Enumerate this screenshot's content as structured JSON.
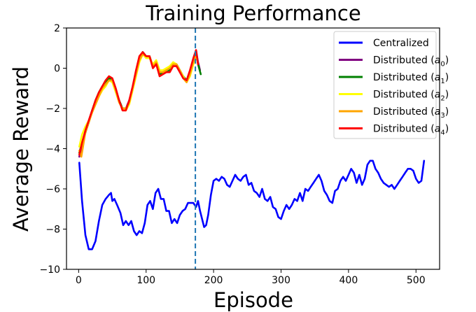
{
  "chart_data": {
    "type": "line",
    "title": "Training Performance",
    "xlabel": "Episode",
    "ylabel": "Average Reward",
    "xlim": [
      -18,
      535
    ],
    "ylim": [
      -10,
      2
    ],
    "x_ticks": [
      0,
      100,
      200,
      300,
      400,
      500
    ],
    "y_ticks": [
      -10,
      -8,
      -6,
      -4,
      -2,
      0,
      2
    ],
    "x_tick_labels": [
      "0",
      "100",
      "200",
      "300",
      "400",
      "500"
    ],
    "y_tick_labels": [
      "−10",
      "−8",
      "−6",
      "−4",
      "−2",
      "0",
      "2"
    ],
    "grid": false,
    "legend_position": "top-right",
    "vline": {
      "x": 173,
      "style": "dashed",
      "color": "#1f77b4"
    },
    "series": [
      {
        "name": "Centralized",
        "sub": "",
        "color": "#0000ff",
        "points": [
          [
            1,
            -4.7
          ],
          [
            5,
            -6.6
          ],
          [
            10,
            -8.3
          ],
          [
            15,
            -9.0
          ],
          [
            20,
            -9.0
          ],
          [
            25,
            -8.6
          ],
          [
            30,
            -7.6
          ],
          [
            35,
            -6.8
          ],
          [
            40,
            -6.5
          ],
          [
            45,
            -6.3
          ],
          [
            48,
            -6.2
          ],
          [
            50,
            -6.6
          ],
          [
            53,
            -6.5
          ],
          [
            57,
            -6.8
          ],
          [
            62,
            -7.2
          ],
          [
            66,
            -7.8
          ],
          [
            70,
            -7.6
          ],
          [
            74,
            -7.8
          ],
          [
            78,
            -7.6
          ],
          [
            82,
            -8.1
          ],
          [
            86,
            -8.3
          ],
          [
            90,
            -8.1
          ],
          [
            94,
            -8.2
          ],
          [
            98,
            -7.7
          ],
          [
            102,
            -6.8
          ],
          [
            106,
            -6.6
          ],
          [
            110,
            -7.0
          ],
          [
            114,
            -6.2
          ],
          [
            118,
            -6.0
          ],
          [
            122,
            -6.5
          ],
          [
            126,
            -6.5
          ],
          [
            130,
            -7.1
          ],
          [
            134,
            -7.1
          ],
          [
            138,
            -7.7
          ],
          [
            142,
            -7.5
          ],
          [
            146,
            -7.7
          ],
          [
            150,
            -7.3
          ],
          [
            154,
            -7.1
          ],
          [
            158,
            -7.0
          ],
          [
            162,
            -6.7
          ],
          [
            166,
            -6.7
          ],
          [
            170,
            -6.7
          ],
          [
            174,
            -6.9
          ],
          [
            177,
            -6.6
          ],
          [
            180,
            -7.1
          ],
          [
            183,
            -7.5
          ],
          [
            186,
            -7.9
          ],
          [
            189,
            -7.8
          ],
          [
            192,
            -7.3
          ],
          [
            196,
            -6.3
          ],
          [
            200,
            -5.6
          ],
          [
            204,
            -5.5
          ],
          [
            208,
            -5.6
          ],
          [
            212,
            -5.4
          ],
          [
            216,
            -5.5
          ],
          [
            220,
            -5.8
          ],
          [
            224,
            -5.9
          ],
          [
            228,
            -5.6
          ],
          [
            232,
            -5.3
          ],
          [
            236,
            -5.5
          ],
          [
            240,
            -5.6
          ],
          [
            244,
            -5.4
          ],
          [
            248,
            -5.3
          ],
          [
            252,
            -5.8
          ],
          [
            256,
            -5.7
          ],
          [
            260,
            -6.1
          ],
          [
            264,
            -6.2
          ],
          [
            268,
            -6.4
          ],
          [
            272,
            -6.0
          ],
          [
            276,
            -6.5
          ],
          [
            280,
            -6.6
          ],
          [
            284,
            -6.4
          ],
          [
            288,
            -6.9
          ],
          [
            292,
            -7.0
          ],
          [
            296,
            -7.4
          ],
          [
            300,
            -7.5
          ],
          [
            304,
            -7.1
          ],
          [
            308,
            -6.8
          ],
          [
            312,
            -7.0
          ],
          [
            316,
            -6.8
          ],
          [
            320,
            -6.5
          ],
          [
            324,
            -6.6
          ],
          [
            328,
            -6.2
          ],
          [
            332,
            -6.6
          ],
          [
            336,
            -6.0
          ],
          [
            340,
            -6.1
          ],
          [
            344,
            -5.9
          ],
          [
            348,
            -5.7
          ],
          [
            352,
            -5.5
          ],
          [
            356,
            -5.3
          ],
          [
            360,
            -5.6
          ],
          [
            364,
            -6.1
          ],
          [
            368,
            -6.3
          ],
          [
            372,
            -6.6
          ],
          [
            376,
            -6.7
          ],
          [
            380,
            -6.1
          ],
          [
            384,
            -6.0
          ],
          [
            388,
            -5.6
          ],
          [
            392,
            -5.4
          ],
          [
            396,
            -5.6
          ],
          [
            400,
            -5.3
          ],
          [
            404,
            -5.0
          ],
          [
            408,
            -5.2
          ],
          [
            412,
            -5.7
          ],
          [
            416,
            -5.3
          ],
          [
            420,
            -5.8
          ],
          [
            424,
            -5.5
          ],
          [
            428,
            -4.8
          ],
          [
            432,
            -4.6
          ],
          [
            436,
            -4.6
          ],
          [
            440,
            -5.0
          ],
          [
            444,
            -5.2
          ],
          [
            448,
            -5.5
          ],
          [
            452,
            -5.7
          ],
          [
            456,
            -5.8
          ],
          [
            460,
            -5.9
          ],
          [
            464,
            -5.8
          ],
          [
            468,
            -6.0
          ],
          [
            472,
            -5.8
          ],
          [
            476,
            -5.6
          ],
          [
            480,
            -5.4
          ],
          [
            484,
            -5.2
          ],
          [
            488,
            -5.0
          ],
          [
            492,
            -5.0
          ],
          [
            496,
            -5.1
          ],
          [
            500,
            -5.5
          ],
          [
            504,
            -5.7
          ],
          [
            508,
            -5.6
          ],
          [
            512,
            -4.6
          ]
        ]
      },
      {
        "name": "Distributed (",
        "sub": "0",
        "color": "#800080",
        "points": [
          [
            1,
            -4.4
          ],
          [
            5,
            -3.8
          ],
          [
            10,
            -3.2
          ],
          [
            15,
            -2.6
          ],
          [
            20,
            -2.1
          ],
          [
            25,
            -1.7
          ],
          [
            30,
            -1.3
          ],
          [
            35,
            -1.0
          ],
          [
            40,
            -0.7
          ],
          [
            45,
            -0.5
          ],
          [
            50,
            -0.6
          ],
          [
            55,
            -1.1
          ],
          [
            60,
            -1.6
          ],
          [
            65,
            -2.0
          ],
          [
            70,
            -2.0
          ],
          [
            75,
            -1.6
          ],
          [
            80,
            -1.0
          ],
          [
            85,
            -0.2
          ],
          [
            90,
            0.5
          ],
          [
            95,
            0.8
          ],
          [
            100,
            0.6
          ],
          [
            105,
            0.6
          ],
          [
            110,
            0.1
          ],
          [
            115,
            0.3
          ],
          [
            120,
            -0.3
          ],
          [
            125,
            -0.2
          ],
          [
            130,
            -0.1
          ],
          [
            135,
            -0.1
          ],
          [
            140,
            0.2
          ],
          [
            145,
            0.2
          ],
          [
            150,
            -0.1
          ],
          [
            155,
            -0.4
          ],
          [
            160,
            -0.6
          ],
          [
            165,
            -0.2
          ],
          [
            170,
            0.4
          ],
          [
            174,
            0.9
          ],
          [
            177,
            0.3
          ],
          [
            180,
            -0.1
          ]
        ]
      },
      {
        "name": "Distributed (",
        "sub": "1",
        "color": "#008000",
        "points": [
          [
            1,
            -4.2
          ],
          [
            5,
            -3.7
          ],
          [
            10,
            -3.2
          ],
          [
            15,
            -2.7
          ],
          [
            20,
            -2.1
          ],
          [
            25,
            -1.6
          ],
          [
            30,
            -1.2
          ],
          [
            35,
            -0.9
          ],
          [
            40,
            -0.7
          ],
          [
            45,
            -0.5
          ],
          [
            50,
            -0.6
          ],
          [
            55,
            -1.1
          ],
          [
            60,
            -1.6
          ],
          [
            65,
            -2.0
          ],
          [
            70,
            -2.0
          ],
          [
            75,
            -1.7
          ],
          [
            80,
            -1.0
          ],
          [
            85,
            -0.2
          ],
          [
            90,
            0.5
          ],
          [
            95,
            0.8
          ],
          [
            100,
            0.6
          ],
          [
            105,
            0.6
          ],
          [
            110,
            0.1
          ],
          [
            115,
            0.3
          ],
          [
            120,
            -0.3
          ],
          [
            125,
            -0.2
          ],
          [
            130,
            -0.1
          ],
          [
            135,
            -0.1
          ],
          [
            140,
            0.2
          ],
          [
            145,
            0.2
          ],
          [
            150,
            -0.1
          ],
          [
            155,
            -0.4
          ],
          [
            160,
            -0.6
          ],
          [
            165,
            -0.2
          ],
          [
            170,
            0.4
          ],
          [
            174,
            0.8
          ],
          [
            177,
            0.2
          ],
          [
            181,
            -0.3
          ]
        ]
      },
      {
        "name": "Distributed (",
        "sub": "2",
        "color": "#ffff00",
        "points": [
          [
            1,
            -3.9
          ],
          [
            5,
            -3.3
          ],
          [
            10,
            -2.9
          ],
          [
            15,
            -2.6
          ],
          [
            20,
            -2.2
          ],
          [
            25,
            -1.8
          ],
          [
            30,
            -1.4
          ],
          [
            35,
            -1.1
          ],
          [
            40,
            -0.9
          ],
          [
            45,
            -0.6
          ],
          [
            50,
            -0.7
          ],
          [
            55,
            -1.2
          ],
          [
            60,
            -1.7
          ],
          [
            65,
            -2.0
          ],
          [
            70,
            -2.1
          ],
          [
            75,
            -1.8
          ],
          [
            80,
            -1.1
          ],
          [
            85,
            -0.4
          ],
          [
            90,
            0.3
          ],
          [
            95,
            0.7
          ],
          [
            100,
            0.5
          ],
          [
            105,
            0.5
          ],
          [
            110,
            0.2
          ],
          [
            115,
            0.4
          ],
          [
            120,
            -0.1
          ],
          [
            125,
            -0.1
          ],
          [
            130,
            0.0
          ],
          [
            135,
            0.1
          ],
          [
            140,
            0.3
          ],
          [
            145,
            0.2
          ],
          [
            150,
            -0.1
          ],
          [
            155,
            -0.4
          ],
          [
            160,
            -0.7
          ],
          [
            165,
            -0.4
          ],
          [
            170,
            0.2
          ],
          [
            174,
            0.5
          ]
        ]
      },
      {
        "name": "Distributed (",
        "sub": "3",
        "color": "#ffa500",
        "points": [
          [
            1,
            -4.1
          ],
          [
            4,
            -4.4
          ],
          [
            7,
            -3.8
          ],
          [
            10,
            -3.2
          ],
          [
            15,
            -2.7
          ],
          [
            20,
            -2.2
          ],
          [
            25,
            -1.8
          ],
          [
            30,
            -1.4
          ],
          [
            35,
            -1.0
          ],
          [
            40,
            -0.8
          ],
          [
            45,
            -0.6
          ],
          [
            50,
            -0.6
          ],
          [
            55,
            -1.1
          ],
          [
            60,
            -1.7
          ],
          [
            65,
            -2.0
          ],
          [
            70,
            -2.0
          ],
          [
            75,
            -1.7
          ],
          [
            80,
            -1.0
          ],
          [
            85,
            -0.3
          ],
          [
            90,
            0.4
          ],
          [
            95,
            0.7
          ],
          [
            100,
            0.6
          ],
          [
            105,
            0.6
          ],
          [
            110,
            0.1
          ],
          [
            115,
            0.3
          ],
          [
            120,
            -0.2
          ],
          [
            125,
            -0.2
          ],
          [
            130,
            -0.1
          ],
          [
            135,
            0.0
          ],
          [
            140,
            0.2
          ],
          [
            145,
            0.2
          ],
          [
            150,
            -0.1
          ],
          [
            155,
            -0.5
          ],
          [
            160,
            -0.7
          ],
          [
            165,
            -0.3
          ],
          [
            170,
            0.3
          ],
          [
            174,
            0.6
          ]
        ]
      },
      {
        "name": "Distributed (",
        "sub": "4",
        "color": "#ff0000",
        "points": [
          [
            1,
            -4.3
          ],
          [
            5,
            -3.7
          ],
          [
            10,
            -3.1
          ],
          [
            15,
            -2.6
          ],
          [
            20,
            -2.1
          ],
          [
            25,
            -1.6
          ],
          [
            30,
            -1.2
          ],
          [
            35,
            -0.9
          ],
          [
            40,
            -0.6
          ],
          [
            45,
            -0.4
          ],
          [
            50,
            -0.5
          ],
          [
            55,
            -1.0
          ],
          [
            60,
            -1.6
          ],
          [
            65,
            -2.1
          ],
          [
            70,
            -2.1
          ],
          [
            75,
            -1.6
          ],
          [
            80,
            -0.9
          ],
          [
            85,
            -0.1
          ],
          [
            90,
            0.6
          ],
          [
            95,
            0.8
          ],
          [
            100,
            0.6
          ],
          [
            105,
            0.6
          ],
          [
            110,
            0.0
          ],
          [
            115,
            0.2
          ],
          [
            120,
            -0.4
          ],
          [
            125,
            -0.3
          ],
          [
            130,
            -0.2
          ],
          [
            135,
            -0.2
          ],
          [
            140,
            0.1
          ],
          [
            145,
            0.1
          ],
          [
            150,
            -0.2
          ],
          [
            155,
            -0.5
          ],
          [
            160,
            -0.6
          ],
          [
            165,
            -0.1
          ],
          [
            170,
            0.5
          ],
          [
            174,
            0.9
          ],
          [
            177,
            0.2
          ]
        ]
      }
    ]
  }
}
